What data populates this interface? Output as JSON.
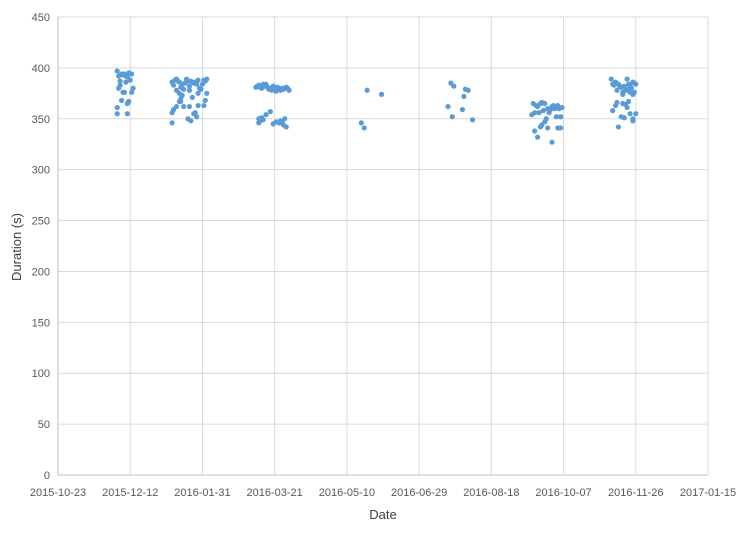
{
  "chart_data": {
    "type": "scatter",
    "title": "",
    "xlabel": "Date",
    "ylabel": "Duration (s)",
    "xlim": [
      "2015-10-23",
      "2017-01-15"
    ],
    "ylim": [
      0,
      450
    ],
    "x_tick_labels": [
      "2015-10-23",
      "2015-12-12",
      "2016-01-31",
      "2016-03-21",
      "2016-05-10",
      "2016-06-29",
      "2016-08-18",
      "2016-10-07",
      "2016-11-26",
      "2017-01-15"
    ],
    "y_tick_labels": [
      "0",
      "50",
      "100",
      "150",
      "200",
      "250",
      "300",
      "350",
      "400",
      "450"
    ],
    "y_ticks": [
      0,
      50,
      100,
      150,
      200,
      250,
      300,
      350,
      400,
      450
    ],
    "grid": "on",
    "legend": "none",
    "marker_color": "#5b9bd5",
    "series": [
      {
        "points": [
          [
            "2015-12-03",
            397
          ],
          [
            "2015-12-04",
            392
          ],
          [
            "2015-12-05",
            387
          ],
          [
            "2015-12-06",
            394
          ],
          [
            "2015-12-07",
            393
          ],
          [
            "2015-12-08",
            394
          ],
          [
            "2015-12-09",
            392
          ],
          [
            "2015-12-10",
            391
          ],
          [
            "2015-12-11",
            395
          ],
          [
            "2015-12-12",
            388
          ],
          [
            "2015-12-13",
            394
          ],
          [
            "2015-12-05",
            383
          ],
          [
            "2015-12-04",
            380
          ],
          [
            "2015-12-07",
            376
          ],
          [
            "2015-12-09",
            386
          ],
          [
            "2015-12-14",
            380
          ],
          [
            "2015-12-13",
            376
          ],
          [
            "2015-12-08",
            376
          ],
          [
            "2015-12-06",
            368
          ],
          [
            "2015-12-11",
            367
          ],
          [
            "2015-12-10",
            365
          ],
          [
            "2015-12-03",
            361
          ],
          [
            "2015-12-03",
            355
          ],
          [
            "2015-12-10",
            355
          ],
          [
            "2016-01-10",
            386
          ],
          [
            "2016-01-11",
            383
          ],
          [
            "2016-01-12",
            388
          ],
          [
            "2016-01-13",
            389
          ],
          [
            "2016-01-14",
            387
          ],
          [
            "2016-01-15",
            386
          ],
          [
            "2016-01-16",
            381
          ],
          [
            "2016-01-17",
            384
          ],
          [
            "2016-01-18",
            379
          ],
          [
            "2016-01-19",
            385
          ],
          [
            "2016-01-20",
            389
          ],
          [
            "2016-01-21",
            387
          ],
          [
            "2016-01-22",
            382
          ],
          [
            "2016-01-23",
            387
          ],
          [
            "2016-01-24",
            386
          ],
          [
            "2016-01-25",
            385
          ],
          [
            "2016-01-26",
            386
          ],
          [
            "2016-01-27",
            384
          ],
          [
            "2016-01-28",
            388
          ],
          [
            "2016-01-29",
            380
          ],
          [
            "2016-01-30",
            379
          ],
          [
            "2016-01-31",
            384
          ],
          [
            "2016-02-01",
            388
          ],
          [
            "2016-02-02",
            387
          ],
          [
            "2016-02-03",
            389
          ],
          [
            "2016-01-13",
            378
          ],
          [
            "2016-01-15",
            375
          ],
          [
            "2016-01-16",
            370
          ],
          [
            "2016-01-17",
            373
          ],
          [
            "2016-01-15",
            367
          ],
          [
            "2016-01-16",
            367
          ],
          [
            "2016-01-18",
            362
          ],
          [
            "2016-01-22",
            378
          ],
          [
            "2016-01-24",
            371
          ],
          [
            "2016-01-28",
            375
          ],
          [
            "2016-02-02",
            368
          ],
          [
            "2016-02-03",
            375
          ],
          [
            "2016-02-01",
            363
          ],
          [
            "2016-01-11",
            359
          ],
          [
            "2016-01-13",
            362
          ],
          [
            "2016-01-10",
            356
          ],
          [
            "2016-01-22",
            362
          ],
          [
            "2016-01-26",
            356
          ],
          [
            "2016-01-28",
            363
          ],
          [
            "2016-01-27",
            352
          ],
          [
            "2016-01-21",
            350
          ],
          [
            "2016-01-25",
            355
          ],
          [
            "2016-01-10",
            346
          ],
          [
            "2016-01-23",
            348
          ],
          [
            "2016-03-08",
            381
          ],
          [
            "2016-03-09",
            382
          ],
          [
            "2016-03-10",
            383
          ],
          [
            "2016-03-11",
            381
          ],
          [
            "2016-03-12",
            380
          ],
          [
            "2016-03-13",
            384
          ],
          [
            "2016-03-14",
            382
          ],
          [
            "2016-03-15",
            384
          ],
          [
            "2016-03-16",
            381
          ],
          [
            "2016-03-17",
            379
          ],
          [
            "2016-03-18",
            380
          ],
          [
            "2016-03-19",
            378
          ],
          [
            "2016-03-20",
            382
          ],
          [
            "2016-03-21",
            379
          ],
          [
            "2016-03-22",
            377
          ],
          [
            "2016-03-23",
            381
          ],
          [
            "2016-03-24",
            379
          ],
          [
            "2016-03-25",
            378
          ],
          [
            "2016-03-26",
            380
          ],
          [
            "2016-03-27",
            379
          ],
          [
            "2016-03-28",
            380
          ],
          [
            "2016-03-29",
            381
          ],
          [
            "2016-03-30",
            380
          ],
          [
            "2016-03-31",
            378
          ],
          [
            "2016-03-10",
            350
          ],
          [
            "2016-03-11",
            348
          ],
          [
            "2016-03-12",
            351
          ],
          [
            "2016-03-13",
            349
          ],
          [
            "2016-03-10",
            346
          ],
          [
            "2016-03-15",
            354
          ],
          [
            "2016-03-18",
            357
          ],
          [
            "2016-03-20",
            345
          ],
          [
            "2016-03-22",
            347
          ],
          [
            "2016-03-24",
            346
          ],
          [
            "2016-03-25",
            348
          ],
          [
            "2016-03-26",
            347
          ],
          [
            "2016-03-27",
            344
          ],
          [
            "2016-03-28",
            350
          ],
          [
            "2016-03-29",
            342
          ],
          [
            "2016-05-20",
            346
          ],
          [
            "2016-05-22",
            341
          ],
          [
            "2016-05-24",
            378
          ],
          [
            "2016-06-03",
            374
          ],
          [
            "2016-07-19",
            362
          ],
          [
            "2016-07-21",
            385
          ],
          [
            "2016-07-23",
            382
          ],
          [
            "2016-07-22",
            352
          ],
          [
            "2016-07-29",
            359
          ],
          [
            "2016-07-30",
            372
          ],
          [
            "2016-07-31",
            379
          ],
          [
            "2016-08-02",
            378
          ],
          [
            "2016-08-05",
            349
          ],
          [
            "2016-09-15",
            354
          ],
          [
            "2016-09-16",
            365
          ],
          [
            "2016-09-17",
            356
          ],
          [
            "2016-09-18",
            363
          ],
          [
            "2016-09-19",
            362
          ],
          [
            "2016-09-20",
            356
          ],
          [
            "2016-09-21",
            365
          ],
          [
            "2016-09-22",
            366
          ],
          [
            "2016-09-23",
            358
          ],
          [
            "2016-09-24",
            365
          ],
          [
            "2016-09-25",
            350
          ],
          [
            "2016-09-26",
            360
          ],
          [
            "2016-09-27",
            356
          ],
          [
            "2016-09-28",
            359
          ],
          [
            "2016-09-29",
            362
          ],
          [
            "2016-09-30",
            363
          ],
          [
            "2016-10-01",
            360
          ],
          [
            "2016-10-02",
            352
          ],
          [
            "2016-10-03",
            363
          ],
          [
            "2016-10-04",
            360
          ],
          [
            "2016-10-05",
            352
          ],
          [
            "2016-10-06",
            361
          ],
          [
            "2016-09-17",
            338
          ],
          [
            "2016-09-19",
            332
          ],
          [
            "2016-09-21",
            342
          ],
          [
            "2016-09-22",
            344
          ],
          [
            "2016-09-24",
            347
          ],
          [
            "2016-09-26",
            341
          ],
          [
            "2016-09-29",
            327
          ],
          [
            "2016-10-03",
            341
          ],
          [
            "2016-10-05",
            341
          ],
          [
            "2016-11-09",
            389
          ],
          [
            "2016-11-10",
            384
          ],
          [
            "2016-11-11",
            383
          ],
          [
            "2016-11-12",
            386
          ],
          [
            "2016-11-13",
            378
          ],
          [
            "2016-11-14",
            384
          ],
          [
            "2016-11-15",
            382
          ],
          [
            "2016-11-16",
            381
          ],
          [
            "2016-11-17",
            376
          ],
          [
            "2016-11-18",
            382
          ],
          [
            "2016-11-19",
            378
          ],
          [
            "2016-11-20",
            389
          ],
          [
            "2016-11-21",
            384
          ],
          [
            "2016-11-22",
            382
          ],
          [
            "2016-11-23",
            380
          ],
          [
            "2016-11-24",
            386
          ],
          [
            "2016-11-25",
            385
          ],
          [
            "2016-11-26",
            384
          ],
          [
            "2016-11-21",
            379
          ],
          [
            "2016-11-22",
            376
          ],
          [
            "2016-11-24",
            374
          ],
          [
            "2016-11-25",
            376
          ],
          [
            "2016-11-17",
            374
          ],
          [
            "2016-11-13",
            366
          ],
          [
            "2016-11-12",
            363
          ],
          [
            "2016-11-17",
            365
          ],
          [
            "2016-11-19",
            364
          ],
          [
            "2016-11-21",
            367
          ],
          [
            "2016-11-10",
            358
          ],
          [
            "2016-11-20",
            361
          ],
          [
            "2016-11-16",
            352
          ],
          [
            "2016-11-18",
            351
          ],
          [
            "2016-11-22",
            355
          ],
          [
            "2016-11-24",
            350
          ],
          [
            "2016-11-26",
            355
          ],
          [
            "2016-11-14",
            342
          ],
          [
            "2016-11-24",
            348
          ]
        ]
      }
    ]
  }
}
